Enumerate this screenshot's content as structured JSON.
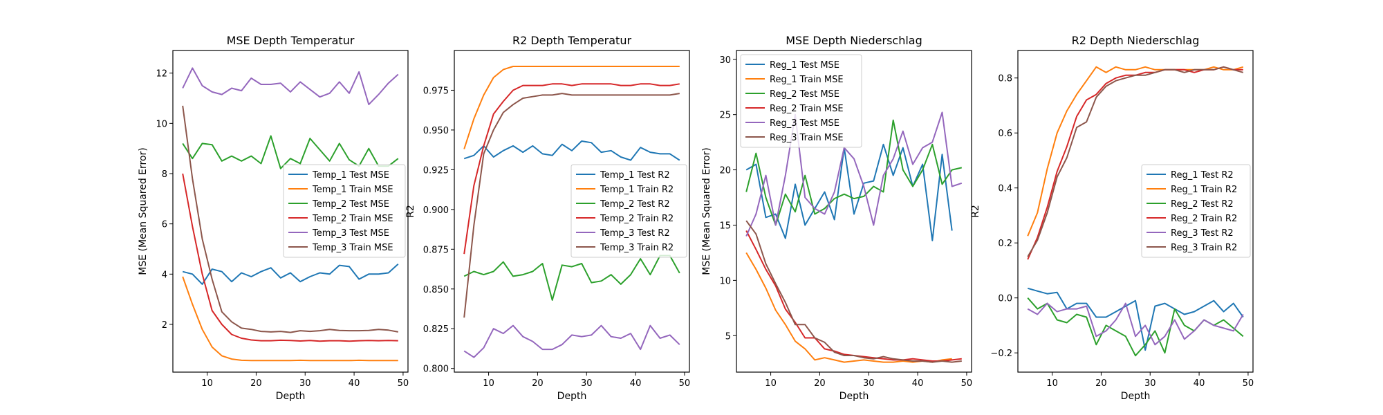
{
  "figure": {
    "background": "#ffffff"
  },
  "chart_data": [
    {
      "type": "line",
      "title": "MSE Depth Temperatur",
      "xlabel": "Depth",
      "ylabel": "MSE (Mean Squared Error)",
      "xlim": [
        3,
        51
      ],
      "ylim": [
        0.1,
        12.9
      ],
      "xticks": [
        10,
        20,
        30,
        40,
        50
      ],
      "yticks": [
        2,
        4,
        6,
        8,
        10,
        12
      ],
      "legend_loc": "right",
      "x": [
        5,
        7,
        9,
        11,
        13,
        15,
        17,
        19,
        21,
        23,
        25,
        27,
        29,
        31,
        33,
        35,
        37,
        39,
        41,
        43,
        45,
        47,
        49
      ],
      "series": [
        {
          "name": "Temp_1 Test MSE",
          "color": "#1f77b4",
          "values": [
            4.1,
            4.0,
            3.6,
            4.2,
            4.1,
            3.7,
            4.05,
            3.9,
            4.1,
            4.25,
            3.85,
            4.05,
            3.7,
            3.9,
            4.05,
            4.0,
            4.35,
            4.3,
            3.8,
            4.0,
            4.0,
            4.05,
            4.4
          ]
        },
        {
          "name": "Temp_1 Train MSE",
          "color": "#ff7f0e",
          "values": [
            3.9,
            2.8,
            1.8,
            1.1,
            0.75,
            0.62,
            0.57,
            0.56,
            0.56,
            0.56,
            0.56,
            0.56,
            0.57,
            0.56,
            0.56,
            0.56,
            0.56,
            0.56,
            0.57,
            0.56,
            0.56,
            0.56,
            0.56
          ]
        },
        {
          "name": "Temp_2 Test MSE",
          "color": "#2ca02c",
          "values": [
            9.2,
            8.6,
            9.2,
            9.15,
            8.5,
            8.7,
            8.5,
            8.7,
            8.4,
            9.5,
            8.2,
            8.6,
            8.4,
            9.4,
            8.95,
            8.5,
            9.2,
            8.55,
            8.3,
            9.0,
            8.3,
            8.3,
            8.6
          ]
        },
        {
          "name": "Temp_2 Train MSE",
          "color": "#d62728",
          "values": [
            8.0,
            5.9,
            4.0,
            2.55,
            2.0,
            1.6,
            1.45,
            1.38,
            1.35,
            1.35,
            1.37,
            1.36,
            1.34,
            1.36,
            1.33,
            1.35,
            1.35,
            1.33,
            1.35,
            1.36,
            1.35,
            1.36,
            1.35
          ]
        },
        {
          "name": "Temp_3 Test MSE",
          "color": "#9467bd",
          "values": [
            11.4,
            12.2,
            11.5,
            11.25,
            11.15,
            11.4,
            11.3,
            11.8,
            11.55,
            11.55,
            11.6,
            11.25,
            11.65,
            11.35,
            11.05,
            11.2,
            11.65,
            11.2,
            12.05,
            10.75,
            11.15,
            11.6,
            11.95
          ]
        },
        {
          "name": "Temp_3 Train MSE",
          "color": "#8c564b",
          "values": [
            10.7,
            7.8,
            5.4,
            3.8,
            2.5,
            2.1,
            1.85,
            1.8,
            1.72,
            1.7,
            1.72,
            1.68,
            1.75,
            1.72,
            1.75,
            1.8,
            1.76,
            1.75,
            1.75,
            1.76,
            1.8,
            1.77,
            1.7
          ]
        }
      ]
    },
    {
      "type": "line",
      "title": "R2 Depth Temperatur",
      "xlabel": "Depth",
      "ylabel": "R2",
      "xlim": [
        3,
        51
      ],
      "ylim": [
        0.7977,
        1.0
      ],
      "xticks": [
        10,
        20,
        30,
        40,
        50
      ],
      "yticks": [
        0.8,
        0.825,
        0.85,
        0.875,
        0.9,
        0.925,
        0.95,
        0.975
      ],
      "ytick_labels": [
        "0.800",
        "0.825",
        "0.850",
        "0.875",
        "0.900",
        "0.925",
        "0.950",
        "0.975"
      ],
      "legend_loc": "right",
      "x": [
        5,
        7,
        9,
        11,
        13,
        15,
        17,
        19,
        21,
        23,
        25,
        27,
        29,
        31,
        33,
        35,
        37,
        39,
        41,
        43,
        45,
        47,
        49
      ],
      "series": [
        {
          "name": "Temp_1 Test R2",
          "color": "#1f77b4",
          "values": [
            0.932,
            0.934,
            0.94,
            0.933,
            0.937,
            0.94,
            0.936,
            0.94,
            0.935,
            0.934,
            0.941,
            0.937,
            0.943,
            0.942,
            0.936,
            0.937,
            0.933,
            0.931,
            0.939,
            0.936,
            0.935,
            0.935,
            0.931
          ]
        },
        {
          "name": "Temp_1 Train R2",
          "color": "#ff7f0e",
          "values": [
            0.938,
            0.957,
            0.972,
            0.983,
            0.988,
            0.99,
            0.99,
            0.99,
            0.99,
            0.99,
            0.99,
            0.99,
            0.99,
            0.99,
            0.99,
            0.99,
            0.99,
            0.99,
            0.99,
            0.99,
            0.99,
            0.99,
            0.99
          ]
        },
        {
          "name": "Temp_2 Test R2",
          "color": "#2ca02c",
          "values": [
            0.858,
            0.861,
            0.859,
            0.861,
            0.867,
            0.858,
            0.859,
            0.861,
            0.866,
            0.843,
            0.865,
            0.864,
            0.866,
            0.854,
            0.855,
            0.859,
            0.853,
            0.859,
            0.869,
            0.859,
            0.871,
            0.871,
            0.86
          ]
        },
        {
          "name": "Temp_2 Train R2",
          "color": "#d62728",
          "values": [
            0.872,
            0.915,
            0.94,
            0.96,
            0.968,
            0.975,
            0.978,
            0.978,
            0.978,
            0.979,
            0.979,
            0.978,
            0.979,
            0.979,
            0.979,
            0.979,
            0.978,
            0.978,
            0.979,
            0.979,
            0.978,
            0.978,
            0.979
          ]
        },
        {
          "name": "Temp_3 Test R2",
          "color": "#9467bd",
          "values": [
            0.811,
            0.807,
            0.813,
            0.825,
            0.822,
            0.827,
            0.82,
            0.817,
            0.812,
            0.812,
            0.815,
            0.821,
            0.82,
            0.821,
            0.827,
            0.82,
            0.819,
            0.822,
            0.812,
            0.827,
            0.819,
            0.821,
            0.815
          ]
        },
        {
          "name": "Temp_3 Train R2",
          "color": "#8c564b",
          "values": [
            0.832,
            0.89,
            0.935,
            0.95,
            0.961,
            0.966,
            0.97,
            0.971,
            0.972,
            0.972,
            0.973,
            0.972,
            0.972,
            0.972,
            0.972,
            0.972,
            0.972,
            0.972,
            0.972,
            0.972,
            0.972,
            0.972,
            0.973
          ]
        }
      ]
    },
    {
      "type": "line",
      "title": "MSE Depth Niederschlag",
      "xlabel": "Depth",
      "ylabel": "MSE (Mean Squared Error)",
      "xlim": [
        3,
        51
      ],
      "ylim": [
        1.7,
        30.8
      ],
      "xticks": [
        10,
        20,
        30,
        40,
        50
      ],
      "yticks": [
        5,
        10,
        15,
        20,
        25,
        30
      ],
      "legend_loc": "upper left",
      "x": [
        5,
        7,
        9,
        11,
        13,
        15,
        17,
        19,
        21,
        23,
        25,
        27,
        29,
        31,
        33,
        35,
        37,
        39,
        41,
        43,
        45,
        47,
        49
      ],
      "series": [
        {
          "name": "Reg_1 Test MSE",
          "color": "#1f77b4",
          "values": [
            20.0,
            20.5,
            15.7,
            16.0,
            13.8,
            18.7,
            15.0,
            16.5,
            18.0,
            15.5,
            22.0,
            16.0,
            18.8,
            19.0,
            22.3,
            19.5,
            22.0,
            18.5,
            20.5,
            13.6,
            21.4,
            14.5,
            null
          ]
        },
        {
          "name": "Reg_1 Train MSE",
          "color": "#ff7f0e",
          "values": [
            12.5,
            11.0,
            9.3,
            7.3,
            6.0,
            4.5,
            3.8,
            2.8,
            3.0,
            2.8,
            2.6,
            2.7,
            2.8,
            2.7,
            2.6,
            2.6,
            2.7,
            2.6,
            2.7,
            2.6,
            2.8,
            2.9,
            null
          ]
        },
        {
          "name": "Reg_2 Test MSE",
          "color": "#2ca02c",
          "values": [
            18.0,
            21.5,
            17.5,
            15.0,
            17.8,
            16.2,
            19.5,
            16.0,
            16.5,
            17.4,
            17.8,
            17.4,
            17.6,
            18.5,
            18.0,
            24.5,
            20.0,
            18.5,
            20.0,
            22.3,
            18.7,
            20.0,
            20.2
          ]
        },
        {
          "name": "Reg_2 Train MSE",
          "color": "#d62728",
          "values": [
            14.5,
            12.8,
            11.0,
            9.5,
            7.4,
            6.2,
            4.8,
            4.8,
            3.8,
            3.6,
            3.3,
            3.2,
            3.1,
            3.0,
            2.9,
            2.8,
            2.8,
            2.9,
            2.8,
            2.7,
            2.7,
            2.8,
            2.9
          ]
        },
        {
          "name": "Reg_3 Test MSE",
          "color": "#9467bd",
          "values": [
            14.0,
            16.0,
            19.5,
            15.0,
            19.5,
            25.0,
            17.5,
            16.5,
            16.0,
            18.0,
            22.0,
            21.0,
            18.5,
            15.0,
            19.5,
            21.0,
            23.5,
            20.5,
            22.0,
            22.5,
            25.2,
            18.5,
            18.8
          ]
        },
        {
          "name": "Reg_3 Train MSE",
          "color": "#8c564b",
          "values": [
            15.4,
            14.2,
            11.5,
            9.7,
            8.0,
            6.0,
            6.0,
            4.8,
            4.4,
            3.5,
            3.2,
            3.2,
            3.0,
            2.9,
            3.1,
            2.9,
            2.8,
            2.7,
            2.7,
            2.6,
            2.7,
            2.6,
            2.7
          ]
        }
      ]
    },
    {
      "type": "line",
      "title": "R2 Depth Niederschlag",
      "xlabel": "Depth",
      "ylabel": "R2",
      "xlim": [
        3,
        51
      ],
      "ylim": [
        -0.27,
        0.9
      ],
      "xticks": [
        10,
        20,
        30,
        40,
        50
      ],
      "yticks": [
        -0.2,
        0.0,
        0.2,
        0.4,
        0.6,
        0.8
      ],
      "ytick_labels": [
        "−0.2",
        "0.0",
        "0.2",
        "0.4",
        "0.6",
        "0.8"
      ],
      "legend_loc": "right",
      "x": [
        5,
        7,
        9,
        11,
        13,
        15,
        17,
        19,
        21,
        23,
        25,
        27,
        29,
        31,
        33,
        35,
        37,
        39,
        41,
        43,
        45,
        47,
        49
      ],
      "series": [
        {
          "name": "Reg_1 Test R2",
          "color": "#1f77b4",
          "values": [
            0.035,
            0.025,
            0.015,
            0.02,
            -0.04,
            -0.02,
            -0.02,
            -0.07,
            -0.07,
            -0.05,
            -0.03,
            -0.01,
            -0.19,
            -0.03,
            -0.02,
            -0.04,
            -0.06,
            -0.05,
            -0.03,
            -0.01,
            -0.05,
            -0.02,
            -0.07
          ]
        },
        {
          "name": "Reg_1 Train R2",
          "color": "#ff7f0e",
          "values": [
            0.225,
            0.31,
            0.47,
            0.6,
            0.68,
            0.74,
            0.79,
            0.84,
            0.82,
            0.84,
            0.83,
            0.83,
            0.84,
            0.83,
            0.83,
            0.83,
            0.83,
            0.83,
            0.83,
            0.84,
            0.83,
            0.83,
            0.84
          ]
        },
        {
          "name": "Reg_2 Test R2",
          "color": "#2ca02c",
          "values": [
            0.0,
            -0.04,
            -0.02,
            -0.08,
            -0.09,
            -0.06,
            -0.07,
            -0.17,
            -0.1,
            -0.12,
            -0.14,
            -0.21,
            -0.17,
            -0.12,
            -0.2,
            -0.04,
            -0.1,
            -0.12,
            -0.08,
            -0.1,
            -0.08,
            -0.11,
            -0.14
          ]
        },
        {
          "name": "Reg_2 Train R2",
          "color": "#d62728",
          "values": [
            0.14,
            0.22,
            0.33,
            0.46,
            0.55,
            0.66,
            0.72,
            0.74,
            0.78,
            0.8,
            0.81,
            0.81,
            0.82,
            0.82,
            0.83,
            0.83,
            0.83,
            0.82,
            0.83,
            0.83,
            0.84,
            0.83,
            0.83
          ]
        },
        {
          "name": "Reg_3 Test R2",
          "color": "#9467bd",
          "values": [
            -0.04,
            -0.06,
            -0.02,
            -0.05,
            -0.04,
            -0.04,
            -0.03,
            -0.14,
            -0.12,
            -0.08,
            -0.02,
            -0.14,
            -0.1,
            -0.17,
            -0.14,
            -0.08,
            -0.15,
            -0.12,
            -0.08,
            -0.1,
            -0.11,
            -0.12,
            -0.06
          ]
        },
        {
          "name": "Reg_3 Train R2",
          "color": "#8c564b",
          "values": [
            0.15,
            0.21,
            0.31,
            0.44,
            0.51,
            0.62,
            0.64,
            0.73,
            0.77,
            0.79,
            0.8,
            0.81,
            0.81,
            0.82,
            0.83,
            0.83,
            0.82,
            0.83,
            0.83,
            0.83,
            0.84,
            0.83,
            0.82
          ]
        }
      ]
    }
  ]
}
